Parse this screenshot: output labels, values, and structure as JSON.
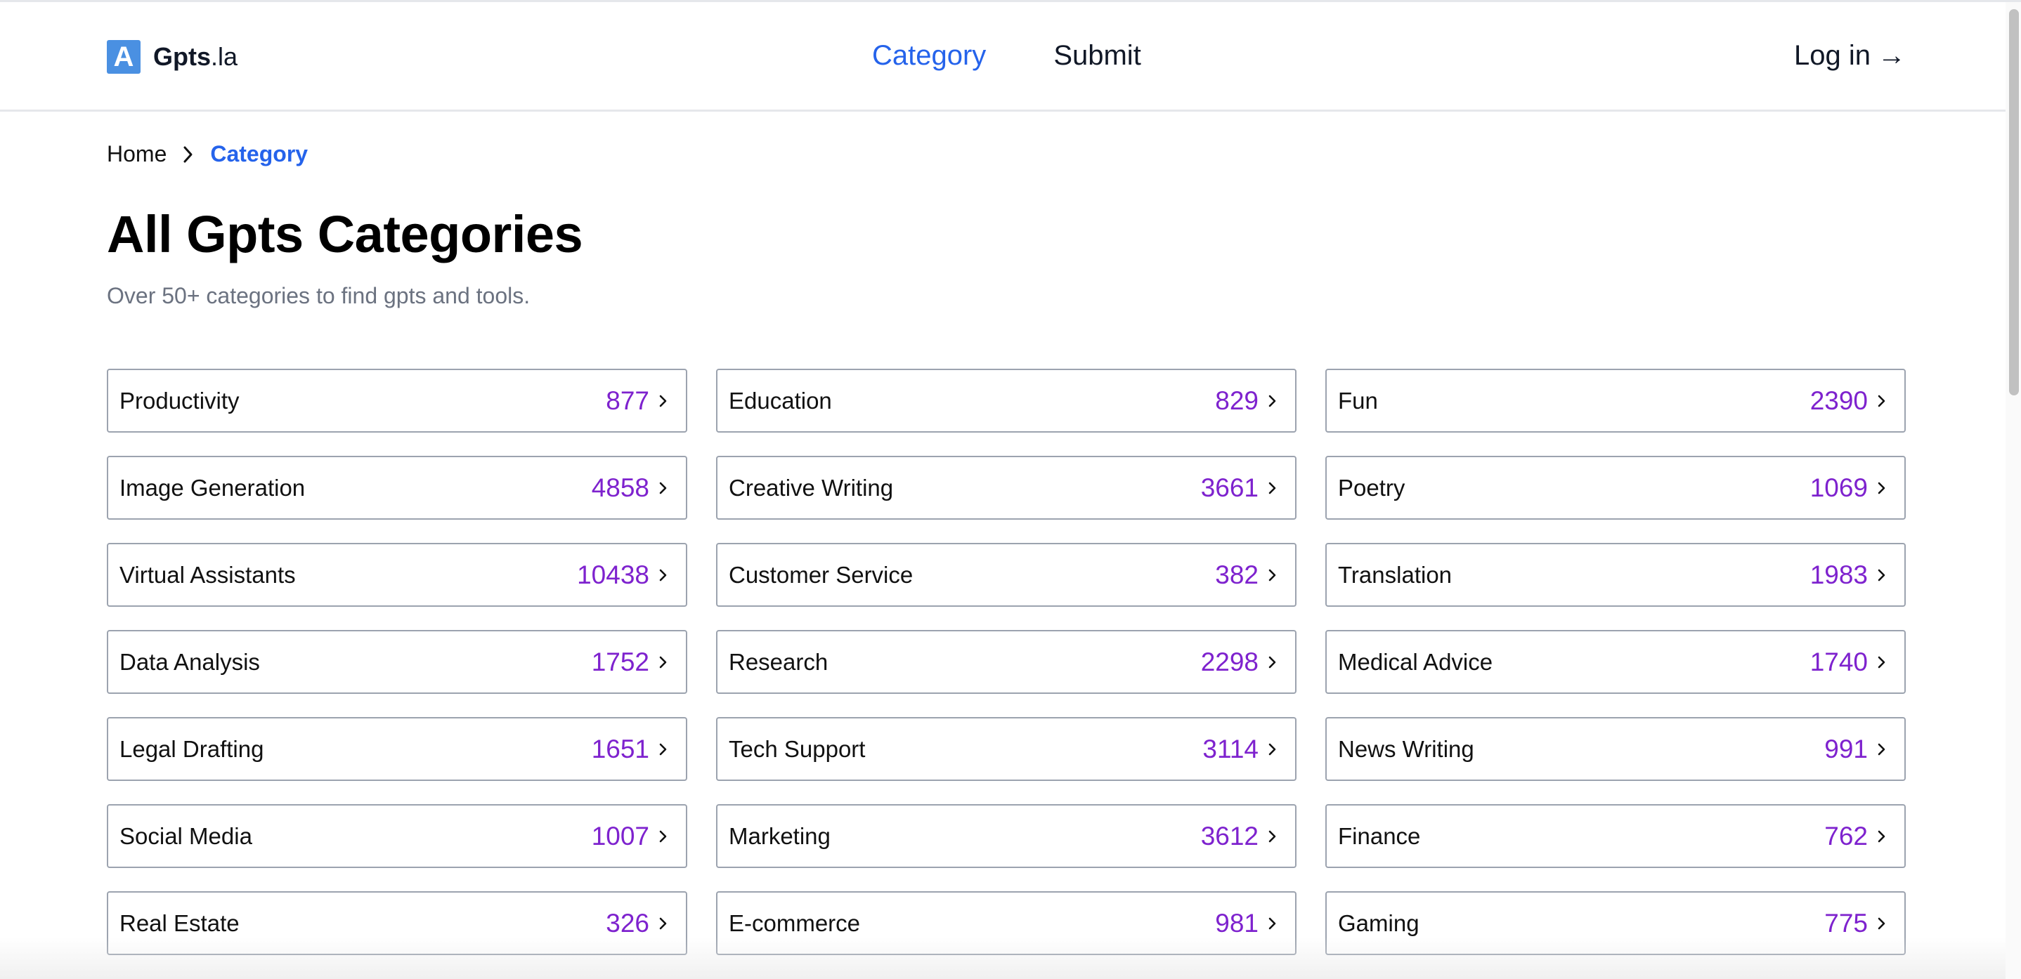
{
  "header": {
    "logo_mark": "A",
    "logo_name": "Gpts",
    "logo_tld": ".la",
    "nav": [
      {
        "label": "Category",
        "active": true
      },
      {
        "label": "Submit",
        "active": false
      }
    ],
    "login_label": "Log in",
    "login_arrow": "→"
  },
  "breadcrumb": {
    "home": "Home",
    "current": "Category"
  },
  "page": {
    "title": "All Gpts Categories",
    "subtitle": "Over 50+ categories to find gpts and tools."
  },
  "categories": [
    {
      "name": "Productivity",
      "count": "877"
    },
    {
      "name": "Education",
      "count": "829"
    },
    {
      "name": "Fun",
      "count": "2390"
    },
    {
      "name": "Image Generation",
      "count": "4858"
    },
    {
      "name": "Creative Writing",
      "count": "3661"
    },
    {
      "name": "Poetry",
      "count": "1069"
    },
    {
      "name": "Virtual Assistants",
      "count": "10438"
    },
    {
      "name": "Customer Service",
      "count": "382"
    },
    {
      "name": "Translation",
      "count": "1983"
    },
    {
      "name": "Data Analysis",
      "count": "1752"
    },
    {
      "name": "Research",
      "count": "2298"
    },
    {
      "name": "Medical Advice",
      "count": "1740"
    },
    {
      "name": "Legal Drafting",
      "count": "1651"
    },
    {
      "name": "Tech Support",
      "count": "3114"
    },
    {
      "name": "News Writing",
      "count": "991"
    },
    {
      "name": "Social Media",
      "count": "1007"
    },
    {
      "name": "Marketing",
      "count": "3612"
    },
    {
      "name": "Finance",
      "count": "762"
    },
    {
      "name": "Real Estate",
      "count": "326"
    },
    {
      "name": "E-commerce",
      "count": "981"
    },
    {
      "name": "Gaming",
      "count": "775"
    }
  ],
  "colors": {
    "accent": "#2563eb",
    "count": "#7e22ce",
    "logo": "#4a90e2"
  }
}
